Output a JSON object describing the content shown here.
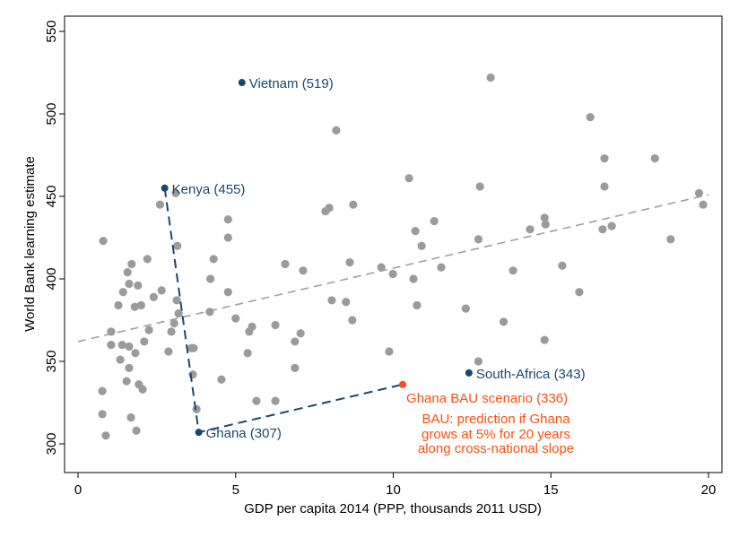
{
  "chart_data": {
    "type": "scatter",
    "title": "",
    "xlabel": "GDP per capita 2014 (PPP, thousands 2011 USD)",
    "ylabel": "World Bank learning estimate",
    "xlim": [
      -0.4,
      20.4
    ],
    "ylim": [
      290,
      560
    ],
    "xticks": [
      0,
      5,
      10,
      15,
      20
    ],
    "yticks": [
      300,
      350,
      400,
      450,
      500,
      550
    ],
    "grid": false,
    "colors": {
      "points": "#9b9b9b",
      "highlight": "#1a476f",
      "scenario": "#ff4e12",
      "fit": "#a0a0a0"
    },
    "points": [
      [
        2.6,
        445
      ],
      [
        0.8,
        423
      ],
      [
        3.15,
        420
      ],
      [
        4.76,
        436
      ],
      [
        4.76,
        425
      ],
      [
        2.2,
        412
      ],
      [
        1.7,
        409
      ],
      [
        1.57,
        404
      ],
      [
        1.62,
        397
      ],
      [
        1.9,
        396
      ],
      [
        1.43,
        392
      ],
      [
        2.65,
        393
      ],
      [
        2.4,
        389
      ],
      [
        4.3,
        412
      ],
      [
        4.2,
        400
      ],
      [
        4.76,
        392
      ],
      [
        1.28,
        384
      ],
      [
        1.8,
        383
      ],
      [
        2.0,
        384
      ],
      [
        3.13,
        387
      ],
      [
        3.19,
        379
      ],
      [
        4.18,
        380
      ],
      [
        5.0,
        376
      ],
      [
        3.05,
        373
      ],
      [
        2.25,
        369
      ],
      [
        2.96,
        368
      ],
      [
        1.05,
        368
      ],
      [
        2.1,
        362
      ],
      [
        1.05,
        360
      ],
      [
        1.4,
        360
      ],
      [
        1.62,
        359
      ],
      [
        2.87,
        356
      ],
      [
        3.6,
        358
      ],
      [
        3.67,
        358
      ],
      [
        1.82,
        355
      ],
      [
        1.34,
        351
      ],
      [
        1.62,
        346
      ],
      [
        1.54,
        338
      ],
      [
        1.93,
        336
      ],
      [
        2.05,
        333
      ],
      [
        3.64,
        342
      ],
      [
        4.55,
        339
      ],
      [
        0.77,
        332
      ],
      [
        3.76,
        321
      ],
      [
        0.77,
        318
      ],
      [
        1.68,
        316
      ],
      [
        0.88,
        305
      ],
      [
        1.85,
        308
      ],
      [
        3.1,
        452
      ],
      [
        10.5,
        461
      ],
      [
        7.97,
        443
      ],
      [
        7.85,
        441
      ],
      [
        8.73,
        445
      ],
      [
        10.7,
        429
      ],
      [
        10.9,
        420
      ],
      [
        6.57,
        409
      ],
      [
        7.14,
        405
      ],
      [
        8.62,
        410
      ],
      [
        9.62,
        407
      ],
      [
        9.99,
        403
      ],
      [
        10.64,
        400
      ],
      [
        10.75,
        384
      ],
      [
        8.05,
        387
      ],
      [
        8.5,
        386
      ],
      [
        8.7,
        375
      ],
      [
        5.52,
        371
      ],
      [
        5.43,
        368
      ],
      [
        6.26,
        372
      ],
      [
        7.06,
        367
      ],
      [
        6.88,
        362
      ],
      [
        5.38,
        355
      ],
      [
        9.87,
        356
      ],
      [
        6.88,
        346
      ],
      [
        5.66,
        326
      ],
      [
        6.26,
        326
      ],
      [
        8.19,
        490
      ],
      [
        13.09,
        522
      ],
      [
        16.25,
        498
      ],
      [
        16.7,
        473
      ],
      [
        18.3,
        473
      ],
      [
        16.7,
        456
      ],
      [
        12.75,
        456
      ],
      [
        11.3,
        435
      ],
      [
        14.8,
        437
      ],
      [
        14.83,
        433
      ],
      [
        14.34,
        430
      ],
      [
        16.64,
        430
      ],
      [
        16.93,
        432
      ],
      [
        19.7,
        452
      ],
      [
        19.83,
        445
      ],
      [
        18.8,
        424
      ],
      [
        12.7,
        424
      ],
      [
        13.8,
        405
      ],
      [
        15.36,
        408
      ],
      [
        11.52,
        407
      ],
      [
        15.9,
        392
      ],
      [
        12.3,
        382
      ],
      [
        13.5,
        374
      ],
      [
        14.8,
        363
      ],
      [
        12.7,
        350
      ]
    ],
    "highlighted": [
      {
        "label": "Vietnam (519)",
        "x": 5.2,
        "y": 519
      },
      {
        "label": "Kenya (455)",
        "x": 2.75,
        "y": 455
      },
      {
        "label": "Ghana (307)",
        "x": 3.83,
        "y": 307
      },
      {
        "label": "South-Africa (343)",
        "x": 12.4,
        "y": 343
      }
    ],
    "scenario": {
      "label": "Ghana BAU scenario (336)",
      "x": 10.3,
      "y": 336
    },
    "fit_line": {
      "x": [
        0,
        20
      ],
      "y": [
        362,
        451
      ]
    },
    "annotation": [
      "BAU: prediction if Ghana",
      "grows at 5% for 20 years",
      "along cross-national slope"
    ]
  }
}
